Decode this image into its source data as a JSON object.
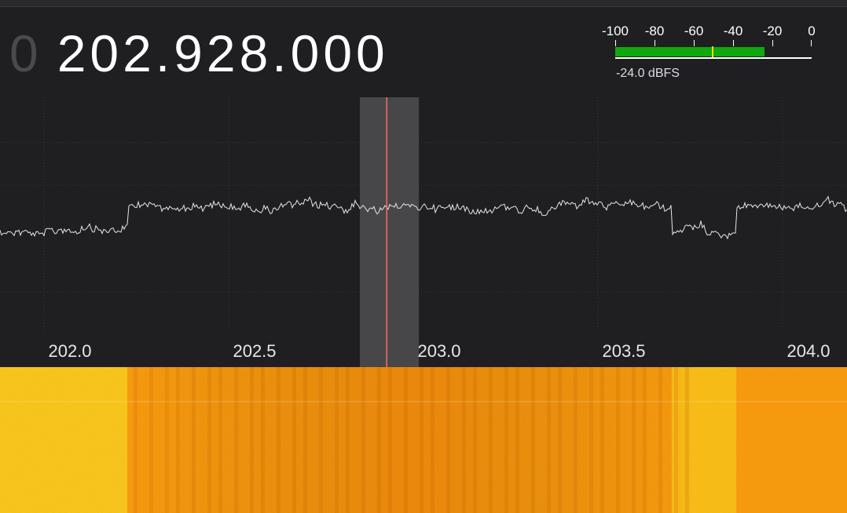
{
  "frequency": {
    "lead_digit": "0",
    "value": "202.928.000"
  },
  "level_meter": {
    "scale_labels": [
      "-100",
      "-80",
      "-60",
      "-40",
      "-20",
      "0"
    ],
    "scale_values": [
      -100,
      -80,
      -60,
      -40,
      -20,
      0
    ],
    "range_dbfs": [
      -100,
      0
    ],
    "level_dbfs": -24.0,
    "peak_dbfs": -51,
    "readout": "-24.0 dBFS",
    "fill_color": "#0fa80f",
    "peak_color": "#e8e000"
  },
  "spectrum": {
    "x_labels": [
      "202.0",
      "202.5",
      "203.0",
      "203.5",
      "204.0"
    ],
    "x_values_mhz": [
      202.0,
      202.5,
      203.0,
      203.5,
      204.0
    ],
    "view_range_mhz": [
      201.88,
      204.175
    ],
    "tuned_mhz": 202.928,
    "filter_range_mhz": [
      202.855,
      203.015
    ],
    "trace_color": "#e6e6e6",
    "tuning_line_color": "#ff6a6a",
    "trace_levels": [
      {
        "from_mhz": 201.88,
        "to_mhz": 202.225,
        "level": 0.5
      },
      {
        "from_mhz": 202.225,
        "to_mhz": 203.7,
        "level": 0.41
      },
      {
        "from_mhz": 203.7,
        "to_mhz": 203.875,
        "level": 0.5
      },
      {
        "from_mhz": 203.875,
        "to_mhz": 204.175,
        "level": 0.41
      }
    ]
  },
  "waterfall": {
    "segments": [
      {
        "from_mhz": 201.88,
        "to_mhz": 202.225,
        "color": "#ffcc22"
      },
      {
        "from_mhz": 202.225,
        "to_mhz": 203.7,
        "color": "#ff9a12"
      },
      {
        "from_mhz": 203.7,
        "to_mhz": 203.875,
        "color": "#ffc21c"
      },
      {
        "from_mhz": 203.875,
        "to_mhz": 204.175,
        "color": "#ff9a12"
      }
    ]
  }
}
